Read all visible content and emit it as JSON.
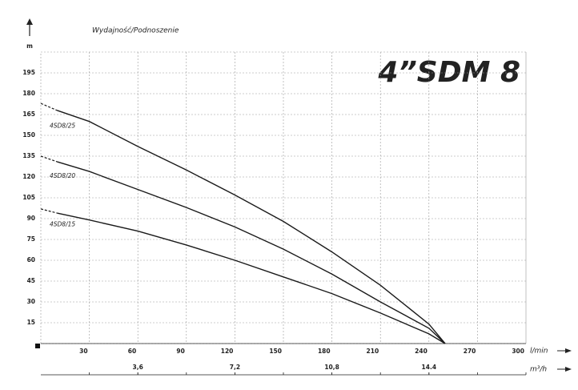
{
  "chart_data": {
    "type": "line",
    "title": "4”SDM 8",
    "subtitle": "Wydajność/Podnoszenie",
    "ylabel": "m",
    "xlabel": "l/min",
    "x2label": "m³/h",
    "x": [
      0,
      10,
      30,
      60,
      90,
      120,
      150,
      180,
      210,
      240,
      250
    ],
    "series": [
      {
        "name": "4SD8/25",
        "color": "#1a1a1a",
        "values": [
          173,
          168,
          160,
          142,
          125,
          107,
          88,
          66,
          42,
          14,
          0
        ]
      },
      {
        "name": "4SD8/20",
        "color": "#1a1a1a",
        "values": [
          135,
          131,
          124,
          111,
          98,
          84,
          68,
          50,
          30,
          11,
          0
        ]
      },
      {
        "name": "4SD8/15",
        "color": "#1a1a1a",
        "values": [
          97,
          94,
          89,
          81,
          71,
          60,
          48,
          36,
          22,
          7,
          0
        ]
      }
    ],
    "xlim": [
      0,
      300
    ],
    "ylim": [
      0,
      210
    ],
    "xticks": [
      30,
      60,
      90,
      120,
      150,
      180,
      210,
      240,
      270,
      300
    ],
    "yticks": [
      15,
      30,
      45,
      60,
      75,
      90,
      105,
      120,
      135,
      150,
      165,
      180,
      195
    ],
    "x2lim": [
      0,
      18
    ],
    "x2ticks": [
      {
        "value": 3.6,
        "label": "3,6"
      },
      {
        "value": 7.2,
        "label": "7,2"
      },
      {
        "value": 10.8,
        "label": "10,8"
      },
      {
        "value": 14.4,
        "label": "14.4"
      }
    ],
    "grid": true
  }
}
